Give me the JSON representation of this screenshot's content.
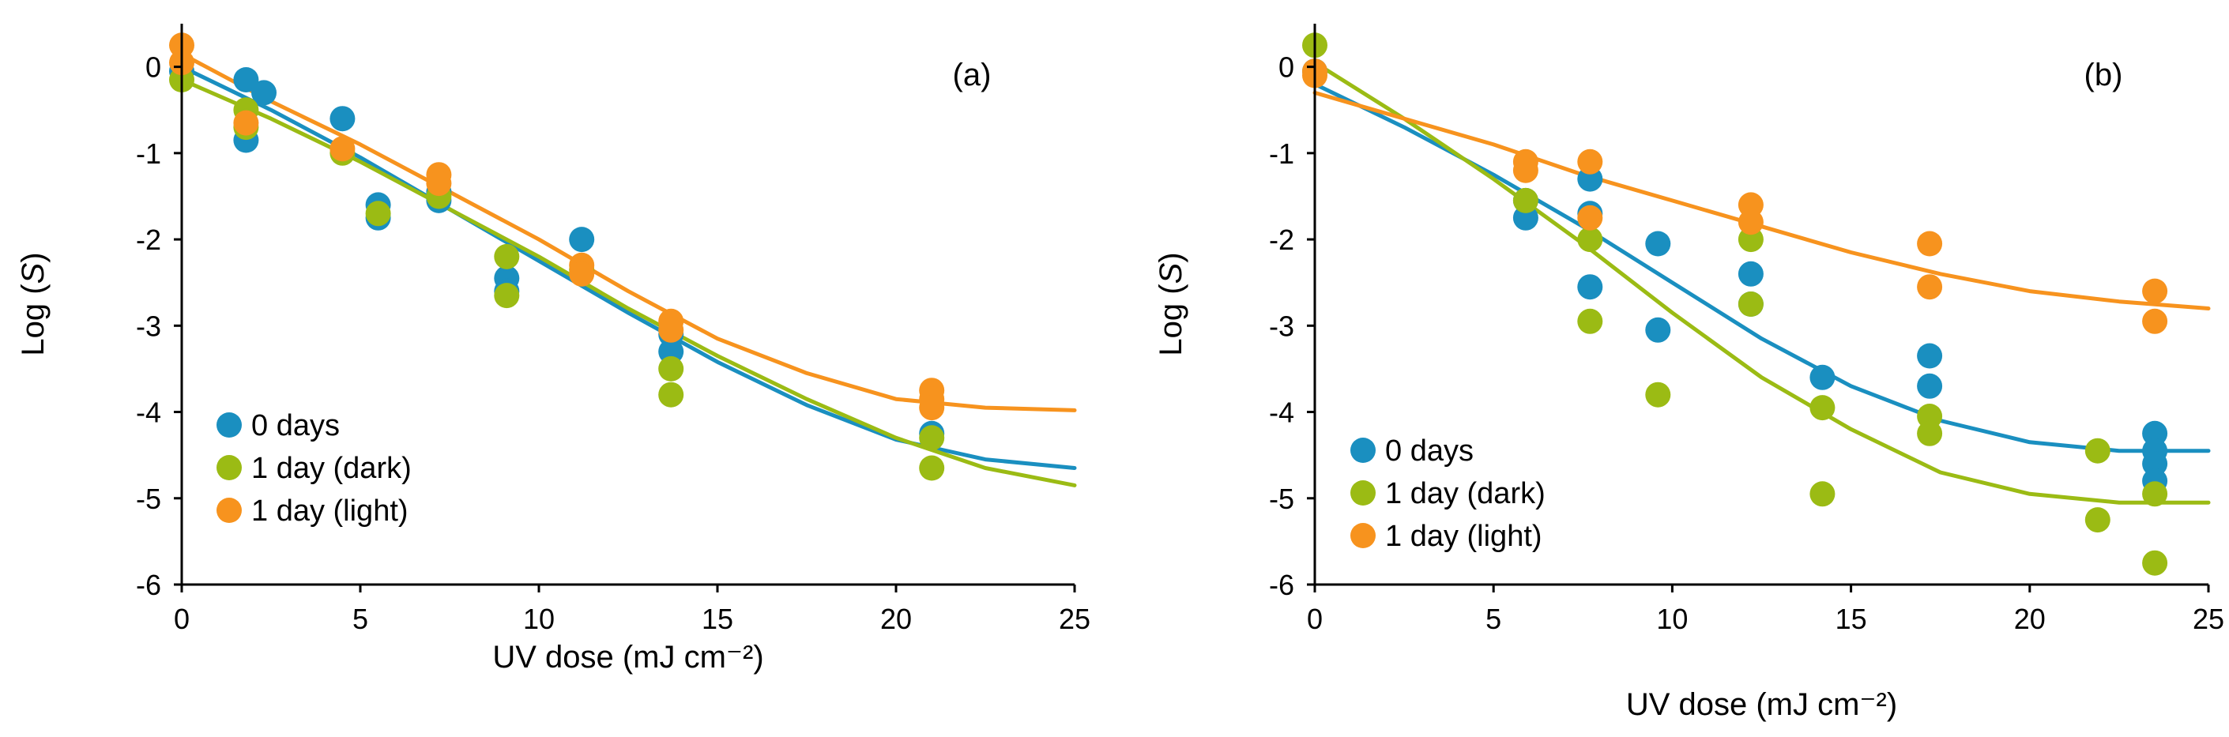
{
  "colors": {
    "days0": "#1a8fc0",
    "dark": "#9bbb14",
    "light": "#f7931e"
  },
  "chart_data": [
    {
      "type": "scatter",
      "panel_label": "(a)",
      "xlabel": "UV dose (mJ cm⁻²)",
      "ylabel_prefix": "Log (",
      "ylabel_var": "S",
      "ylabel_suffix": ")",
      "xlim": [
        0,
        25
      ],
      "ylim": [
        -6,
        0.5
      ],
      "xticks": [
        0,
        5,
        10,
        15,
        20,
        25
      ],
      "yticks": [
        0,
        -1,
        -2,
        -3,
        -4,
        -5,
        -6
      ],
      "legend_position": "bottom-left",
      "series": [
        {
          "name": "0 days",
          "color_key": "days0",
          "points": [
            [
              0,
              -0.05
            ],
            [
              1.8,
              -0.15
            ],
            [
              1.8,
              -0.85
            ],
            [
              2.3,
              -0.3
            ],
            [
              4.5,
              -0.6
            ],
            [
              5.5,
              -1.6
            ],
            [
              5.5,
              -1.75
            ],
            [
              7.2,
              -1.55
            ],
            [
              7.2,
              -1.45
            ],
            [
              9.1,
              -2.45
            ],
            [
              9.1,
              -2.6
            ],
            [
              11.2,
              -2.0
            ],
            [
              13.7,
              -3.1
            ],
            [
              13.7,
              -3.3
            ],
            [
              21,
              -4.25
            ]
          ],
          "fit": [
            [
              0,
              0
            ],
            [
              2.5,
              -0.5
            ],
            [
              5,
              -1.05
            ],
            [
              7.5,
              -1.65
            ],
            [
              10,
              -2.25
            ],
            [
              12.5,
              -2.85
            ],
            [
              15,
              -3.42
            ],
            [
              17.5,
              -3.92
            ],
            [
              20,
              -4.32
            ],
            [
              22.5,
              -4.55
            ],
            [
              25,
              -4.65
            ]
          ]
        },
        {
          "name": "1 day (dark)",
          "color_key": "dark",
          "points": [
            [
              0,
              -0.15
            ],
            [
              1.8,
              -0.5
            ],
            [
              1.8,
              -0.7
            ],
            [
              4.5,
              -1.0
            ],
            [
              5.5,
              -1.7
            ],
            [
              7.2,
              -1.5
            ],
            [
              9.1,
              -2.2
            ],
            [
              9.1,
              -2.65
            ],
            [
              11.2,
              -2.35
            ],
            [
              13.7,
              -3.5
            ],
            [
              13.7,
              -3.8
            ],
            [
              21,
              -4.3
            ],
            [
              21,
              -4.65
            ]
          ],
          "fit": [
            [
              0,
              -0.15
            ],
            [
              2.5,
              -0.6
            ],
            [
              5,
              -1.1
            ],
            [
              7.5,
              -1.65
            ],
            [
              10,
              -2.2
            ],
            [
              12.5,
              -2.8
            ],
            [
              15,
              -3.35
            ],
            [
              17.5,
              -3.85
            ],
            [
              20,
              -4.3
            ],
            [
              22.5,
              -4.65
            ],
            [
              25,
              -4.85
            ]
          ]
        },
        {
          "name": "1 day (light)",
          "color_key": "light",
          "points": [
            [
              0,
              0.25
            ],
            [
              0,
              0.05
            ],
            [
              1.8,
              -0.65
            ],
            [
              4.5,
              -0.95
            ],
            [
              7.2,
              -1.25
            ],
            [
              7.2,
              -1.35
            ],
            [
              11.2,
              -2.3
            ],
            [
              11.2,
              -2.4
            ],
            [
              13.7,
              -2.95
            ],
            [
              13.7,
              -3.05
            ],
            [
              21,
              -3.75
            ],
            [
              21,
              -3.85
            ],
            [
              21,
              -3.95
            ]
          ],
          "fit": [
            [
              0,
              0.15
            ],
            [
              2.5,
              -0.4
            ],
            [
              5,
              -0.9
            ],
            [
              7.5,
              -1.45
            ],
            [
              10,
              -2.0
            ],
            [
              12.5,
              -2.6
            ],
            [
              15,
              -3.15
            ],
            [
              17.5,
              -3.55
            ],
            [
              20,
              -3.85
            ],
            [
              22.5,
              -3.95
            ],
            [
              25,
              -3.98
            ]
          ]
        }
      ]
    },
    {
      "type": "scatter",
      "panel_label": "(b)",
      "xlabel": "UV dose (mJ cm⁻²)",
      "ylabel_prefix": "Log (",
      "ylabel_var": "S",
      "ylabel_suffix": ")",
      "xlim": [
        0,
        25
      ],
      "ylim": [
        -6,
        0.5
      ],
      "xticks": [
        0,
        5,
        10,
        15,
        20,
        25
      ],
      "yticks": [
        0,
        -1,
        -2,
        -3,
        -4,
        -5,
        -6
      ],
      "legend_position": "bottom-left",
      "series": [
        {
          "name": "0 days",
          "color_key": "days0",
          "points": [
            [
              0,
              -0.05
            ],
            [
              5.9,
              -1.55
            ],
            [
              5.9,
              -1.75
            ],
            [
              7.7,
              -1.3
            ],
            [
              7.7,
              -1.7
            ],
            [
              7.7,
              -2.55
            ],
            [
              9.6,
              -2.05
            ],
            [
              9.6,
              -3.05
            ],
            [
              12.2,
              -2.4
            ],
            [
              12.2,
              -2.75
            ],
            [
              14.2,
              -3.6
            ],
            [
              17.2,
              -3.35
            ],
            [
              17.2,
              -3.7
            ],
            [
              23.5,
              -4.25
            ],
            [
              23.5,
              -4.45
            ],
            [
              23.5,
              -4.6
            ],
            [
              23.5,
              -4.8
            ]
          ],
          "fit": [
            [
              0,
              -0.2
            ],
            [
              2.5,
              -0.7
            ],
            [
              5,
              -1.25
            ],
            [
              7.5,
              -1.85
            ],
            [
              10,
              -2.5
            ],
            [
              12.5,
              -3.15
            ],
            [
              15,
              -3.7
            ],
            [
              17.5,
              -4.1
            ],
            [
              20,
              -4.35
            ],
            [
              22.5,
              -4.45
            ],
            [
              25,
              -4.45
            ]
          ]
        },
        {
          "name": "1 day (dark)",
          "color_key": "dark",
          "points": [
            [
              0,
              0.25
            ],
            [
              5.9,
              -1.55
            ],
            [
              7.7,
              -2.0
            ],
            [
              7.7,
              -2.95
            ],
            [
              9.6,
              -3.8
            ],
            [
              12.2,
              -2.0
            ],
            [
              12.2,
              -2.75
            ],
            [
              14.2,
              -3.95
            ],
            [
              14.2,
              -4.95
            ],
            [
              17.2,
              -4.05
            ],
            [
              17.2,
              -4.25
            ],
            [
              21.9,
              -4.45
            ],
            [
              21.9,
              -5.25
            ],
            [
              23.5,
              -4.95
            ],
            [
              23.5,
              -5.75
            ]
          ],
          "fit": [
            [
              0,
              0.05
            ],
            [
              2.5,
              -0.6
            ],
            [
              5,
              -1.3
            ],
            [
              7.5,
              -2.05
            ],
            [
              10,
              -2.85
            ],
            [
              12.5,
              -3.6
            ],
            [
              15,
              -4.2
            ],
            [
              17.5,
              -4.7
            ],
            [
              20,
              -4.95
            ],
            [
              22.5,
              -5.05
            ],
            [
              25,
              -5.05
            ]
          ]
        },
        {
          "name": "1 day (light)",
          "color_key": "light",
          "points": [
            [
              0,
              -0.05
            ],
            [
              0,
              -0.1
            ],
            [
              5.9,
              -1.1
            ],
            [
              5.9,
              -1.2
            ],
            [
              7.7,
              -1.1
            ],
            [
              7.7,
              -1.75
            ],
            [
              12.2,
              -1.6
            ],
            [
              12.2,
              -1.8
            ],
            [
              17.2,
              -2.05
            ],
            [
              17.2,
              -2.55
            ],
            [
              23.5,
              -2.6
            ],
            [
              23.5,
              -2.95
            ]
          ],
          "fit": [
            [
              0,
              -0.3
            ],
            [
              2.5,
              -0.6
            ],
            [
              5,
              -0.9
            ],
            [
              7.5,
              -1.25
            ],
            [
              10,
              -1.55
            ],
            [
              12.5,
              -1.85
            ],
            [
              15,
              -2.15
            ],
            [
              17.5,
              -2.4
            ],
            [
              20,
              -2.6
            ],
            [
              22.5,
              -2.72
            ],
            [
              25,
              -2.8
            ]
          ]
        }
      ]
    }
  ]
}
